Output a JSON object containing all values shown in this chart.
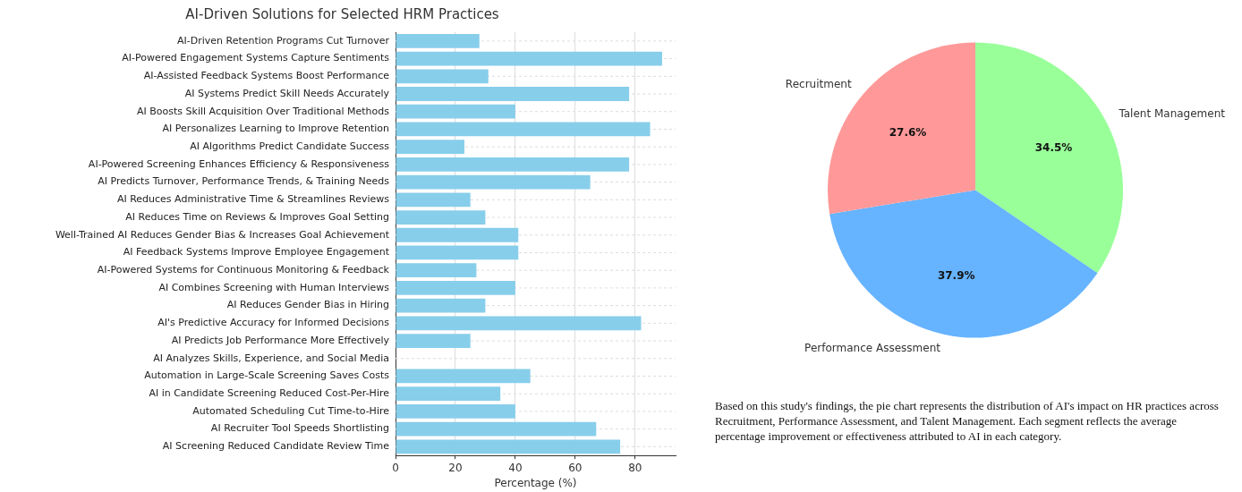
{
  "chart_data": [
    {
      "type": "bar",
      "title": "AI-Driven Solutions for Selected HRM Practices",
      "xlabel": "Percentage (%)",
      "orientation": "horizontal",
      "categories": [
        "AI-Driven Retention Programs Cut Turnover",
        "AI-Powered Engagement Systems Capture Sentiments",
        "AI-Assisted Feedback Systems Boost Performance",
        "AI Systems Predict Skill Needs Accurately",
        "AI Boosts Skill Acquisition Over Traditional Methods",
        "AI Personalizes Learning to Improve Retention",
        "AI Algorithms Predict Candidate Success",
        "AI-Powered Screening Enhances Efficiency & Responsiveness",
        "AI Predicts Turnover, Performance Trends, & Training Needs",
        "AI Reduces Administrative Time & Streamlines Reviews",
        "AI Reduces Time on Reviews & Improves Goal Setting",
        "Well-Trained AI Reduces Gender Bias & Increases Goal Achievement",
        "AI Feedback Systems Improve Employee Engagement",
        "AI-Powered Systems for Continuous Monitoring & Feedback",
        "AI Combines Screening with Human Interviews",
        "AI Reduces Gender Bias in Hiring",
        "AI's Predictive Accuracy for Informed Decisions",
        "AI Predicts Job Performance More Effectively",
        "AI Analyzes Skills, Experience, and Social Media",
        "Automation in Large-Scale Screening Saves Costs",
        "AI in Candidate Screening Reduced Cost-Per-Hire",
        "Automated Scheduling Cut Time-to-Hire",
        "AI Recruiter Tool Speeds Shortlisting",
        "AI Screening Reduced Candidate Review Time"
      ],
      "values": [
        28,
        89,
        31,
        78,
        40,
        85,
        23,
        78,
        65,
        25,
        30,
        41,
        41,
        27,
        40,
        30,
        82,
        25,
        0,
        45,
        35,
        40,
        67,
        75
      ],
      "color": "#87ceeb",
      "xlim": [
        0,
        93.5
      ],
      "xticks": [
        0,
        20,
        40,
        60,
        80
      ],
      "grid": true,
      "line_style": "dashed"
    },
    {
      "type": "pie",
      "categories": [
        "Talent Management",
        "Performance Assessment",
        "Recruitment"
      ],
      "values": [
        34.5,
        37.9,
        27.6
      ],
      "value_labels": [
        "34.5%",
        "37.9%",
        "27.6%"
      ],
      "colors": [
        "#99ff99",
        "#66b3ff",
        "#ff9999"
      ],
      "annotations": [
        "Based on this study's findings, the pie chart represents the distribution of AI's impact on HR practices across Recruitment, Performance Assessment, and Talent Management. Each segment reflects the average percentage improvement or effectiveness attributed to AI in each category."
      ]
    }
  ]
}
